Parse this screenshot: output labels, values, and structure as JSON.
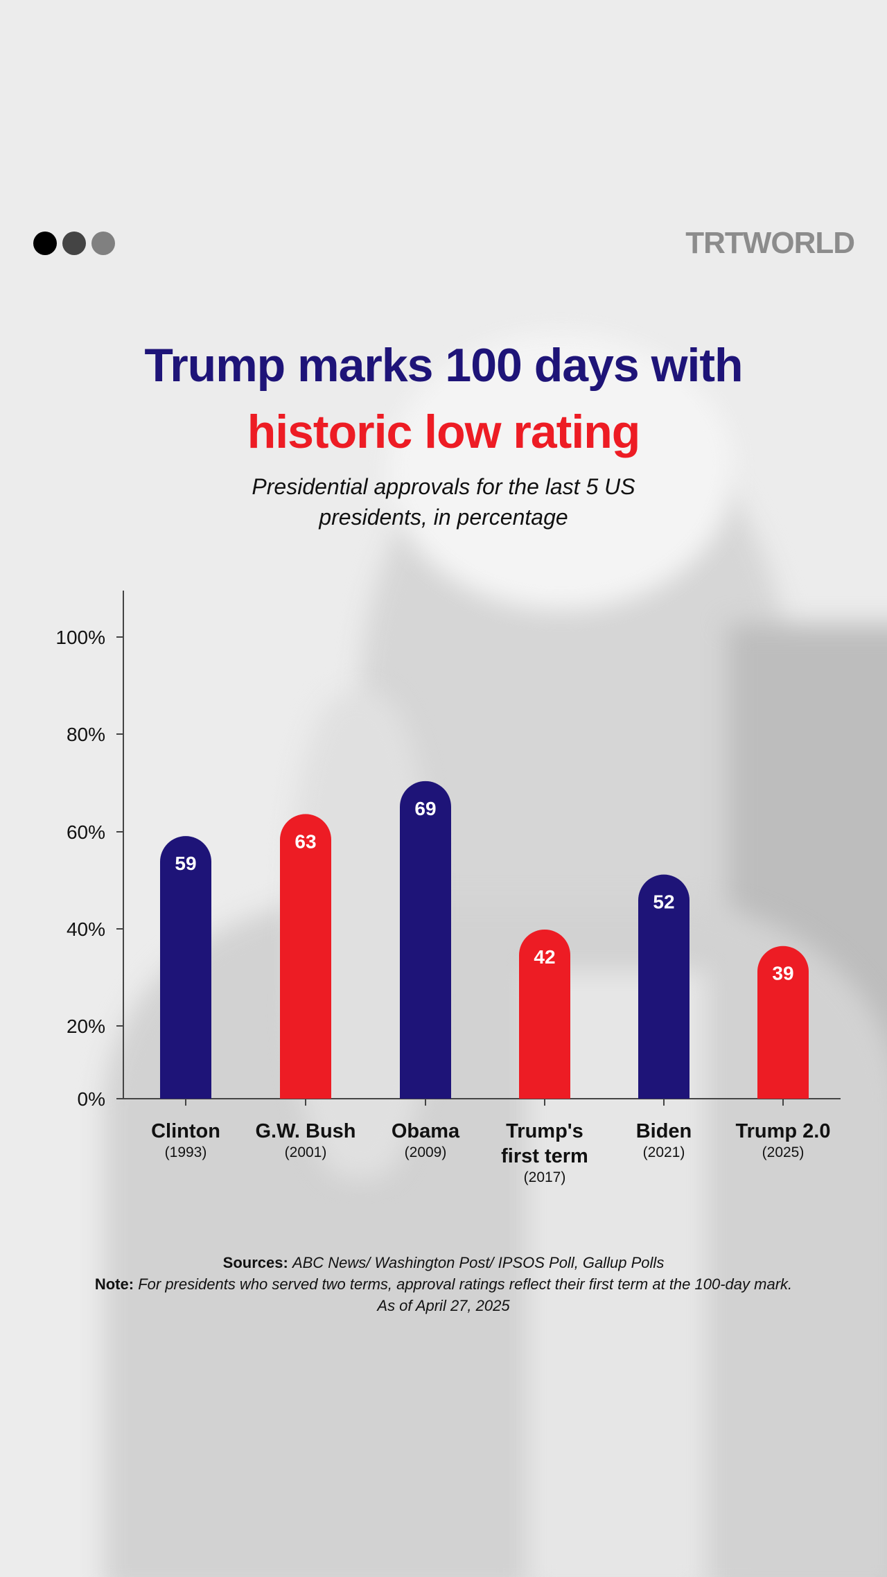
{
  "brand": {
    "logo_text": "TRTWORLD",
    "dots": [
      "#000000",
      "#444444",
      "#808080"
    ]
  },
  "title": {
    "line1": "Trump marks 100 days with",
    "line2": "historic low rating",
    "line1_color": "#1e1478",
    "line2_color": "#ed1c24"
  },
  "subtitle": {
    "line1": "Presidential approvals for the last 5 US",
    "line2": "presidents, in percentage"
  },
  "chart_data": {
    "type": "bar",
    "categories": [
      {
        "name": "Clinton",
        "year": "(1993)"
      },
      {
        "name": "G.W. Bush",
        "year": "(2001)"
      },
      {
        "name": "Obama",
        "year": "(2009)"
      },
      {
        "name": "Trump's first term",
        "year": "(2017)"
      },
      {
        "name": "Biden",
        "year": "(2021)"
      },
      {
        "name": "Trump 2.0",
        "year": "(2025)"
      }
    ],
    "values": [
      59,
      63,
      69,
      42,
      52,
      39
    ],
    "data_labels": [
      "59",
      "63",
      "69",
      "42",
      "52",
      "39"
    ],
    "colors": [
      "#1e1478",
      "#ed1c24",
      "#1e1478",
      "#ed1c24",
      "#1e1478",
      "#ed1c24"
    ],
    "yticks": [
      "0%",
      "20%",
      "40%",
      "60%",
      "80%",
      "100%"
    ],
    "ylim": [
      0,
      100
    ],
    "grid": false
  },
  "footer": {
    "sources_label": "Sources:",
    "sources_text": "ABC News/ Washington Post/ IPSOS Poll, Gallup Polls",
    "note_label": "Note:",
    "note_text": "For presidents who served two terms, approval ratings reflect their first term at the 100-day mark.",
    "as_of": "As of April 27, 2025"
  }
}
